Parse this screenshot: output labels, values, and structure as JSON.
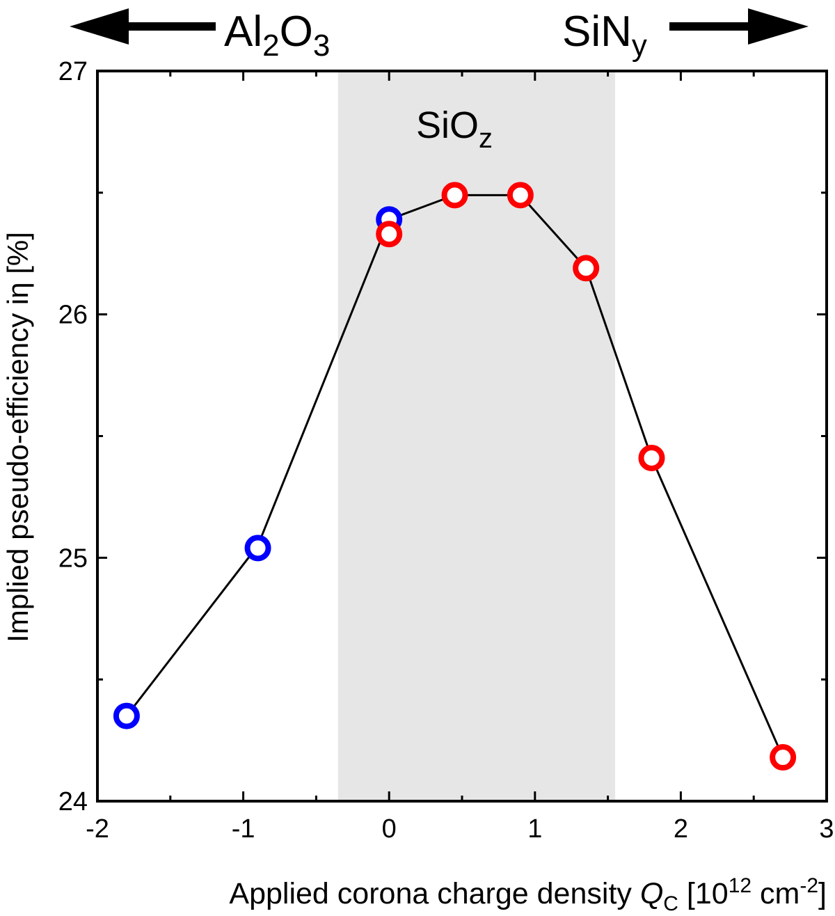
{
  "chart_data": {
    "type": "scatter",
    "xlabel": {
      "prefix": "Applied corona charge density ",
      "var": "Q",
      "var_sub": "C",
      "unit_open": " [10",
      "unit_exp": "12",
      "unit_mid": " cm",
      "unit_exp2": "-2",
      "unit_close": "]"
    },
    "ylabel": "Implied pseudo-efficiency iη [%]",
    "xlim": [
      -2,
      3
    ],
    "ylim": [
      24,
      27
    ],
    "x_ticks": [
      -2,
      -1,
      0,
      1,
      2,
      3
    ],
    "x_tick_labels": [
      "-2",
      "-1",
      "0",
      "1",
      "2",
      "3"
    ],
    "y_ticks": [
      24,
      25,
      26,
      27
    ],
    "y_tick_labels": [
      "24",
      "25",
      "26",
      "27"
    ],
    "shaded_region": {
      "x_from": -0.35,
      "x_to": 1.55,
      "color": "#e6e6e6"
    },
    "line_color": "#000000",
    "line_points": [
      {
        "x": -1.8,
        "y": 24.35
      },
      {
        "x": -0.9,
        "y": 25.05
      },
      {
        "x": 0.0,
        "y": 26.39
      },
      {
        "x": 0.45,
        "y": 26.49
      },
      {
        "x": 0.9,
        "y": 26.49
      },
      {
        "x": 1.35,
        "y": 26.19
      },
      {
        "x": 1.8,
        "y": 25.41
      },
      {
        "x": 2.7,
        "y": 24.18
      }
    ],
    "series": [
      {
        "color": "#0000ff",
        "points": [
          {
            "x": -1.8,
            "y": 24.35
          },
          {
            "x": -0.9,
            "y": 25.04
          },
          {
            "x": 0.0,
            "y": 26.39
          }
        ]
      },
      {
        "color": "#ff0000",
        "points": [
          {
            "x": 0.0,
            "y": 26.33
          },
          {
            "x": 0.45,
            "y": 26.49
          },
          {
            "x": 0.9,
            "y": 26.49
          },
          {
            "x": 1.35,
            "y": 26.19
          },
          {
            "x": 1.8,
            "y": 25.41
          },
          {
            "x": 2.7,
            "y": 24.18
          }
        ]
      }
    ],
    "annotations": {
      "left_arrow": {
        "main": "Al",
        "sub1": "2",
        "mid": "O",
        "sub2": "3"
      },
      "right_arrow": {
        "main": "SiN",
        "sub": "y"
      },
      "region_label": {
        "main": "SiO",
        "sub": "z"
      }
    }
  }
}
